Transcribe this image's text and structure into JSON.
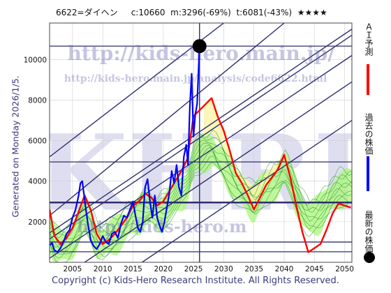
{
  "header": {
    "code": "6622=ダイヘン",
    "current": "c:10660",
    "max_drop": "m:3296(-69%)",
    "target": "t:6081(-43%)",
    "stars": "★★★★"
  },
  "side_label": "Generated on Monday 2026/1/5.",
  "copyright": "Copyright (c) Kids-Hero Research Institute. All Rights Reserved.",
  "watermark": {
    "url_large": "http://kids-hero.main.jp/",
    "url_small": "http://kids-hero.main.jp/analysis/code6622.html",
    "letters": "KHRI",
    "url_bottom": "http://kids-hero.m"
  },
  "legend": {
    "ai_forecast": "ＡＩ予測",
    "past_price": "過去の株価",
    "latest_price": "最新の株価",
    "colors": {
      "ai": "#ff0000",
      "past": "#0000ff",
      "latest": "#000000"
    }
  },
  "colors": {
    "trend": "#2e2e6e",
    "band_fill": "#aaf57a",
    "forecast_lines": "#2a9a2a",
    "yellow_fill": "#fbf5a8",
    "ai_line": "#ff0000",
    "price_line": "#0000ff"
  },
  "chart_data": {
    "type": "line",
    "x_ticks": [
      2005,
      2010,
      2015,
      2020,
      2025,
      2030,
      2035,
      2040,
      2045,
      2050
    ],
    "y_ticks": [
      2000,
      4000,
      6000,
      8000,
      10000
    ],
    "xlim": [
      2001.2,
      2051.2
    ],
    "ylim": [
      0,
      11800
    ],
    "grid": true,
    "latest_point": {
      "x": 2026.0,
      "y": 10660
    },
    "vertical_marker_x": 2026.0,
    "horizontal_levels": [
      10660,
      4950,
      2950,
      1000,
      520
    ],
    "trend_lines": [
      {
        "from": [
          2001.2,
          1150
        ],
        "to": [
          2051.2,
          11200
        ]
      },
      {
        "from": [
          2001.2,
          1450
        ],
        "to": [
          2051.2,
          11500
        ]
      },
      {
        "from": [
          2001.2,
          200
        ],
        "to": [
          2051.2,
          10200
        ]
      },
      {
        "from": [
          2007.0,
          0
        ],
        "to": [
          2051.2,
          8900
        ]
      },
      {
        "from": [
          2001.2,
          5200
        ],
        "to": [
          2030.0,
          11800
        ]
      },
      {
        "from": [
          2001.2,
          2300
        ],
        "to": [
          2040.0,
          11800
        ]
      },
      {
        "from": [
          2016.5,
          0
        ],
        "to": [
          2051.2,
          7000
        ]
      }
    ],
    "series": [
      {
        "name": "過去の株価",
        "x": [
          2001.2,
          2001.6,
          2002.0,
          2002.5,
          2003.0,
          2003.5,
          2004.0,
          2004.5,
          2005.0,
          2005.5,
          2006.0,
          2006.3,
          2006.6,
          2007.0,
          2007.3,
          2007.6,
          2008.0,
          2008.5,
          2009.0,
          2009.5,
          2010.0,
          2010.5,
          2011.0,
          2011.5,
          2012.0,
          2012.5,
          2013.0,
          2013.5,
          2014.0,
          2014.5,
          2015.0,
          2015.4,
          2015.8,
          2016.2,
          2016.6,
          2017.0,
          2017.4,
          2017.8,
          2018.2,
          2018.6,
          2019.0,
          2019.4,
          2019.8,
          2020.2,
          2020.6,
          2021.0,
          2021.4,
          2021.8,
          2022.2,
          2022.6,
          2023.0,
          2023.4,
          2023.8,
          2024.1,
          2024.4,
          2024.7,
          2025.0,
          2025.3,
          2025.6,
          2026.0
        ],
        "y": [
          850,
          950,
          600,
          500,
          700,
          1000,
          1400,
          1600,
          2200,
          2600,
          3300,
          3900,
          4000,
          3100,
          2400,
          1800,
          1100,
          800,
          650,
          900,
          1300,
          1000,
          900,
          1400,
          1500,
          1200,
          1900,
          2300,
          2200,
          2600,
          3000,
          2300,
          1700,
          1500,
          2000,
          3700,
          4100,
          3000,
          2200,
          3300,
          2200,
          1800,
          1500,
          2000,
          2700,
          3400,
          4500,
          3900,
          4800,
          3700,
          3300,
          5200,
          5800,
          4800,
          7700,
          9300,
          6200,
          7300,
          7800,
          10660
        ]
      },
      {
        "name": "ＡＩ予測",
        "x": [
          2001.2,
          2002.0,
          2003.0,
          2004.0,
          2005.0,
          2006.0,
          2007.0,
          2008.0,
          2009.0,
          2010.0,
          2011.0,
          2012.0,
          2013.0,
          2014.0,
          2015.0,
          2016.0,
          2017.0,
          2018.0,
          2019.0,
          2020.0,
          2021.0,
          2022.0,
          2023.0,
          2024.0,
          2025.0,
          2026.0,
          2027.0,
          2028.0,
          2029.0,
          2030.0,
          2031.0,
          2032.0,
          2033.0,
          2034.0,
          2035.0,
          2036.0,
          2037.0,
          2038.0,
          2039.0,
          2040.0,
          2041.0,
          2042.0,
          2043.0,
          2044.0,
          2045.0,
          2046.0,
          2047.0,
          2048.0,
          2049.0,
          2050.0,
          2051.0
        ],
        "y": [
          2600,
          1300,
          900,
          1200,
          1700,
          2500,
          3300,
          2600,
          1400,
          900,
          1100,
          1400,
          1800,
          2200,
          2800,
          3000,
          3400,
          3200,
          2800,
          3000,
          3500,
          4000,
          4500,
          5100,
          7200,
          7500,
          7800,
          8100,
          7200,
          6500,
          5500,
          4400,
          3900,
          3300,
          2600,
          3200,
          3800,
          4200,
          4600,
          5300,
          4200,
          2800,
          1500,
          500,
          700,
          900,
          1600,
          2400,
          2900,
          2800,
          2700
        ]
      }
    ]
  }
}
